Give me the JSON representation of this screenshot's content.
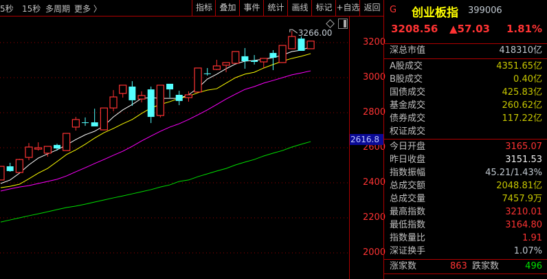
{
  "toolbar": {
    "periods": [
      "5秒",
      "15秒",
      "多周期",
      "更多 〉"
    ],
    "buttons": [
      "指标",
      "叠加",
      "事件",
      "统计",
      "画线",
      "标记",
      "+自选",
      "返回"
    ]
  },
  "chart": {
    "y_axis_labels": [
      "3200",
      "3000",
      "2800",
      "2600",
      "2400",
      "2200",
      "2000"
    ],
    "crosshair_value": "2616.8",
    "high_marker": "3266.00",
    "colors": {
      "up": "#ff3333",
      "down": "#54ffff",
      "ma1": "#ffffff",
      "ma2": "#ffff00",
      "ma3": "#ff00ff",
      "ma4": "#00e000",
      "grid": "#a00000"
    }
  },
  "chart_data": {
    "type": "candlestick",
    "ylim": [
      1960,
      3290
    ],
    "grid": true,
    "candles": [
      {
        "o": 2416,
        "h": 2494,
        "l": 2416,
        "c": 2494
      },
      {
        "o": 2494,
        "h": 2514,
        "l": 2463,
        "c": 2467
      },
      {
        "o": 2459,
        "h": 2537,
        "l": 2459,
        "c": 2533
      },
      {
        "o": 2545,
        "h": 2627,
        "l": 2529,
        "c": 2604
      },
      {
        "o": 2592,
        "h": 2631,
        "l": 2584,
        "c": 2600
      },
      {
        "o": 2569,
        "h": 2608,
        "l": 2549,
        "c": 2608
      },
      {
        "o": 2616,
        "h": 2623,
        "l": 2584,
        "c": 2596
      },
      {
        "o": 2584,
        "h": 2682,
        "l": 2584,
        "c": 2682
      },
      {
        "o": 2718,
        "h": 2776,
        "l": 2698,
        "c": 2761
      },
      {
        "o": 2745,
        "h": 2773,
        "l": 2725,
        "c": 2744
      },
      {
        "o": 2745,
        "h": 2823,
        "l": 2722,
        "c": 2722
      },
      {
        "o": 2702,
        "h": 2827,
        "l": 2702,
        "c": 2827
      },
      {
        "o": 2827,
        "h": 2929,
        "l": 2808,
        "c": 2890
      },
      {
        "o": 2910,
        "h": 2957,
        "l": 2886,
        "c": 2957
      },
      {
        "o": 2949,
        "h": 2980,
        "l": 2839,
        "c": 2871
      },
      {
        "o": 2878,
        "h": 2922,
        "l": 2859,
        "c": 2898
      },
      {
        "o": 2933,
        "h": 2949,
        "l": 2741,
        "c": 2776
      },
      {
        "o": 2784,
        "h": 2957,
        "l": 2773,
        "c": 2957
      },
      {
        "o": 2965,
        "h": 2965,
        "l": 2886,
        "c": 2933
      },
      {
        "o": 2902,
        "h": 2925,
        "l": 2843,
        "c": 2867
      },
      {
        "o": 2886,
        "h": 2922,
        "l": 2863,
        "c": 2902
      },
      {
        "o": 2918,
        "h": 3055,
        "l": 2918,
        "c": 3055
      },
      {
        "o": 3024,
        "h": 3055,
        "l": 3012,
        "c": 3023
      },
      {
        "o": 3047,
        "h": 3102,
        "l": 3043,
        "c": 3067
      },
      {
        "o": 3071,
        "h": 3086,
        "l": 3031,
        "c": 3086
      },
      {
        "o": 3082,
        "h": 3149,
        "l": 3082,
        "c": 3149
      },
      {
        "o": 3122,
        "h": 3169,
        "l": 3051,
        "c": 3094
      },
      {
        "o": 3098,
        "h": 3129,
        "l": 3075,
        "c": 3090
      },
      {
        "o": 3090,
        "h": 3110,
        "l": 3055,
        "c": 3110
      },
      {
        "o": 3141,
        "h": 3157,
        "l": 3043,
        "c": 3114
      },
      {
        "o": 3086,
        "h": 3184,
        "l": 3086,
        "c": 3184
      },
      {
        "o": 3165,
        "h": 3266,
        "l": 3165,
        "c": 3235
      },
      {
        "o": 3223,
        "h": 3235,
        "l": 3153,
        "c": 3153
      },
      {
        "o": 3165.07,
        "h": 3210.01,
        "l": 3164.8,
        "c": 3208.56
      }
    ],
    "ma_series": [
      {
        "values": [
          2396,
          2416,
          2455,
          2502,
          2541,
          2565,
          2588,
          2616,
          2647,
          2674,
          2694,
          2725,
          2776,
          2816,
          2847,
          2882,
          2886,
          2882,
          2882,
          2882,
          2902,
          2941,
          2992,
          3020,
          3051,
          3078,
          3094,
          3098,
          3106,
          3114,
          3129,
          3149,
          3157,
          3176
        ]
      },
      {
        "values": [
          2372,
          2380,
          2392,
          2423,
          2455,
          2482,
          2521,
          2561,
          2588,
          2620,
          2655,
          2686,
          2710,
          2737,
          2761,
          2796,
          2827,
          2847,
          2863,
          2882,
          2894,
          2914,
          2929,
          2937,
          2969,
          3000,
          3020,
          3031,
          3055,
          3075,
          3094,
          3110,
          3122,
          3137
        ]
      },
      {
        "values": [
          2353,
          2365,
          2376,
          2384,
          2396,
          2408,
          2420,
          2439,
          2463,
          2486,
          2510,
          2533,
          2557,
          2580,
          2608,
          2639,
          2667,
          2694,
          2718,
          2737,
          2761,
          2788,
          2816,
          2847,
          2878,
          2906,
          2933,
          2949,
          2969,
          2984,
          3000,
          3016,
          3027,
          3039
        ]
      },
      {
        "values": [
          2176,
          2188,
          2200,
          2212,
          2223,
          2235,
          2247,
          2259,
          2267,
          2278,
          2290,
          2302,
          2314,
          2325,
          2337,
          2349,
          2361,
          2376,
          2388,
          2408,
          2416,
          2435,
          2451,
          2467,
          2482,
          2502,
          2518,
          2533,
          2553,
          2569,
          2584,
          2604,
          2620,
          2635
        ]
      }
    ]
  },
  "panel": {
    "badge": "G",
    "name": "创业板指",
    "code": "399006",
    "price": "3208.56",
    "change": "▲57.03",
    "change_pct": "1.81%",
    "market_cap": {
      "label": "深总市值",
      "value": "418310亿"
    },
    "turnover_rows": [
      {
        "label": "A股成交",
        "value": "4351.65亿"
      },
      {
        "label": "B股成交",
        "value": "0.40亿"
      },
      {
        "label": "国债成交",
        "value": "425.83亿"
      },
      {
        "label": "基金成交",
        "value": "260.62亿"
      },
      {
        "label": "债券成交",
        "value": "117.22亿"
      },
      {
        "label": "权证成交",
        "value": ""
      }
    ],
    "stats_rows": [
      {
        "label": "今日开盘",
        "value": "3165.07",
        "color": "red"
      },
      {
        "label": "昨日收盘",
        "value": "3151.53",
        "color": "wht"
      },
      {
        "label": "指数振幅",
        "value": "45.21/1.43%",
        "color": "lgt"
      },
      {
        "label": "总成交额",
        "value": "2048.81亿",
        "color": "ylw"
      },
      {
        "label": "总成交量",
        "value": "7457.9万",
        "color": "ylw"
      },
      {
        "label": "最高指数",
        "value": "3210.01",
        "color": "red"
      },
      {
        "label": "最低指数",
        "value": "3164.80",
        "color": "red"
      },
      {
        "label": "指数量比",
        "value": "1.91",
        "color": "red"
      },
      {
        "label": "深证换手",
        "value": "1.07%",
        "color": "lgt"
      }
    ],
    "breadth": {
      "up_label": "涨家数",
      "up_value": "863",
      "down_label": "跌家数",
      "down_value": "496"
    }
  }
}
